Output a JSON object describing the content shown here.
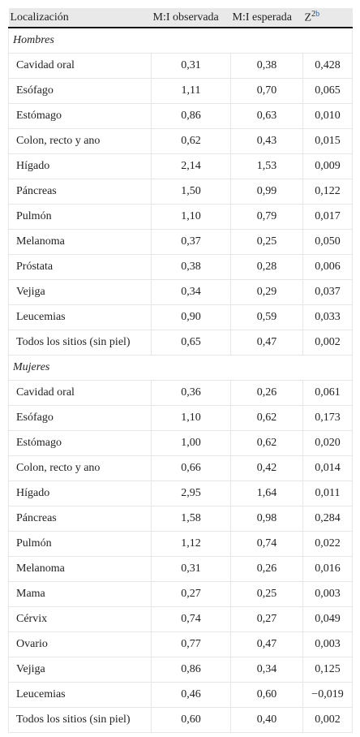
{
  "table": {
    "header": {
      "columns": [
        "Localización",
        "M:I observada",
        "M:I esperada",
        "Z"
      ],
      "sup": "2",
      "link": "b"
    },
    "groups": [
      {
        "label": "Hombres",
        "rows": [
          [
            "Cavidad oral",
            "0,31",
            "0,38",
            "0,428"
          ],
          [
            "Esófago",
            "1,11",
            "0,70",
            "0,065"
          ],
          [
            "Estómago",
            "0,86",
            "0,63",
            "0,010"
          ],
          [
            "Colon, recto y ano",
            "0,62",
            "0,43",
            "0,015"
          ],
          [
            "Hígado",
            "2,14",
            "1,53",
            "0,009"
          ],
          [
            "Páncreas",
            "1,50",
            "0,99",
            "0,122"
          ],
          [
            "Pulmón",
            "1,10",
            "0,79",
            "0,017"
          ],
          [
            "Melanoma",
            "0,37",
            "0,25",
            "0,050"
          ],
          [
            "Próstata",
            "0,38",
            "0,28",
            "0,006"
          ],
          [
            "Vejiga",
            "0,34",
            "0,29",
            "0,037"
          ],
          [
            "Leucemias",
            "0,90",
            "0,59",
            "0,033"
          ],
          [
            "Todos los sitios (sin piel)",
            "0,65",
            "0,47",
            "0,002"
          ]
        ]
      },
      {
        "label": "Mujeres",
        "rows": [
          [
            "Cavidad oral",
            "0,36",
            "0,26",
            "0,061"
          ],
          [
            "Esófago",
            "1,10",
            "0,62",
            "0,173"
          ],
          [
            "Estómago",
            "1,00",
            "0,62",
            "0,020"
          ],
          [
            "Colon, recto y ano",
            "0,66",
            "0,42",
            "0,014"
          ],
          [
            "Hígado",
            "2,95",
            "1,64",
            "0,011"
          ],
          [
            "Páncreas",
            "1,58",
            "0,98",
            "0,284"
          ],
          [
            "Pulmón",
            "1,12",
            "0,74",
            "0,022"
          ],
          [
            "Melanoma",
            "0,31",
            "0,26",
            "0,016"
          ],
          [
            "Mama",
            "0,27",
            "0,25",
            "0,003"
          ],
          [
            "Cérvix",
            "0,74",
            "0,27",
            "0,049"
          ],
          [
            "Ovario",
            "0,77",
            "0,47",
            "0,003"
          ],
          [
            "Vejiga",
            "0,86",
            "0,34",
            "0,125"
          ],
          [
            "Leucemias",
            "0,46",
            "0,60",
            "−0,019"
          ],
          [
            "Todos los sitios (sin piel)",
            "0,60",
            "0,40",
            "0,002"
          ]
        ]
      }
    ]
  }
}
